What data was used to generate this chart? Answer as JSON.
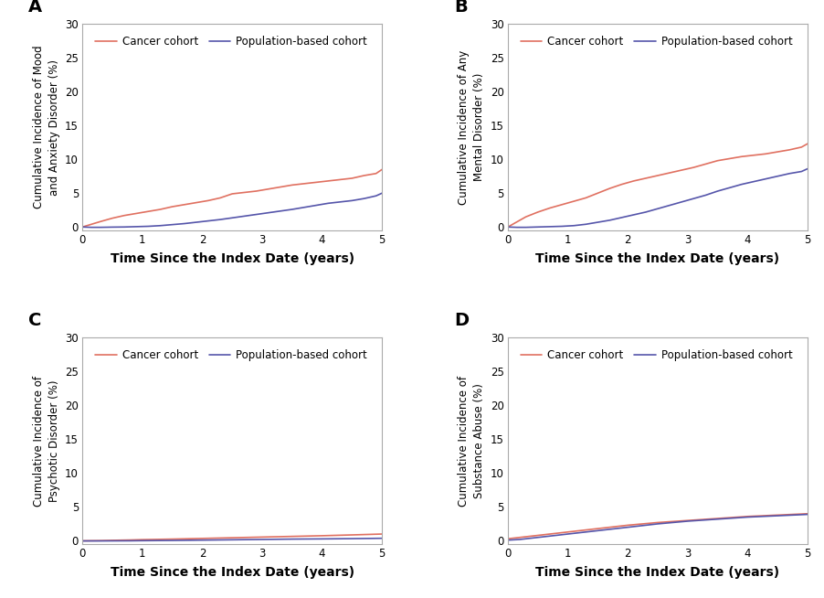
{
  "panels": [
    {
      "label": "A",
      "ylabel": "Cumulative Incidence of Mood\nand Anxiety Disorder (%)",
      "cancer_x": [
        0,
        0.15,
        0.3,
        0.5,
        0.7,
        0.9,
        1.1,
        1.3,
        1.5,
        1.7,
        1.9,
        2.1,
        2.3,
        2.5,
        2.7,
        2.9,
        3.1,
        3.3,
        3.5,
        3.7,
        3.9,
        4.1,
        4.3,
        4.5,
        4.7,
        4.9,
        5.0
      ],
      "cancer_y": [
        0,
        0.4,
        0.8,
        1.3,
        1.7,
        2.0,
        2.3,
        2.6,
        3.0,
        3.3,
        3.6,
        3.9,
        4.3,
        4.9,
        5.1,
        5.3,
        5.6,
        5.9,
        6.2,
        6.4,
        6.6,
        6.8,
        7.0,
        7.2,
        7.6,
        7.9,
        8.5
      ],
      "pop_x": [
        0,
        0.15,
        0.3,
        0.5,
        0.7,
        0.9,
        1.1,
        1.3,
        1.5,
        1.7,
        1.9,
        2.1,
        2.3,
        2.5,
        2.7,
        2.9,
        3.1,
        3.3,
        3.5,
        3.7,
        3.9,
        4.1,
        4.3,
        4.5,
        4.7,
        4.9,
        5.0
      ],
      "pop_y": [
        0,
        -0.05,
        -0.05,
        -0.02,
        0.0,
        0.05,
        0.1,
        0.2,
        0.35,
        0.5,
        0.7,
        0.9,
        1.1,
        1.35,
        1.6,
        1.85,
        2.1,
        2.35,
        2.6,
        2.9,
        3.2,
        3.5,
        3.7,
        3.9,
        4.2,
        4.6,
        5.0
      ]
    },
    {
      "label": "B",
      "ylabel": "Cumulative Incidence of Any\nMental Disorder (%)",
      "cancer_x": [
        0,
        0.1,
        0.2,
        0.3,
        0.5,
        0.7,
        0.9,
        1.1,
        1.3,
        1.5,
        1.7,
        1.9,
        2.1,
        2.3,
        2.5,
        2.7,
        2.9,
        3.1,
        3.3,
        3.5,
        3.7,
        3.9,
        4.1,
        4.3,
        4.5,
        4.7,
        4.9,
        5.0
      ],
      "cancer_y": [
        0,
        0.5,
        1.0,
        1.5,
        2.2,
        2.8,
        3.3,
        3.8,
        4.3,
        5.0,
        5.7,
        6.3,
        6.8,
        7.2,
        7.6,
        8.0,
        8.4,
        8.8,
        9.3,
        9.8,
        10.1,
        10.4,
        10.6,
        10.8,
        11.1,
        11.4,
        11.8,
        12.3
      ],
      "pop_x": [
        0,
        0.15,
        0.3,
        0.5,
        0.7,
        0.9,
        1.1,
        1.3,
        1.5,
        1.7,
        1.9,
        2.1,
        2.3,
        2.5,
        2.7,
        2.9,
        3.1,
        3.3,
        3.5,
        3.7,
        3.9,
        4.1,
        4.3,
        4.5,
        4.7,
        4.9,
        5.0
      ],
      "pop_y": [
        0,
        -0.05,
        -0.05,
        0.0,
        0.05,
        0.1,
        0.2,
        0.4,
        0.7,
        1.0,
        1.4,
        1.8,
        2.2,
        2.7,
        3.2,
        3.7,
        4.2,
        4.7,
        5.3,
        5.8,
        6.3,
        6.7,
        7.1,
        7.5,
        7.9,
        8.2,
        8.6
      ]
    },
    {
      "label": "C",
      "ylabel": "Cumulative Incidence of\nPsychotic Disorder (%)",
      "cancer_x": [
        0,
        0.3,
        0.5,
        0.8,
        1.0,
        1.5,
        2.0,
        2.5,
        3.0,
        3.5,
        4.0,
        4.5,
        5.0
      ],
      "cancer_y": [
        0,
        0.03,
        0.07,
        0.12,
        0.17,
        0.25,
        0.35,
        0.45,
        0.55,
        0.65,
        0.75,
        0.87,
        1.0
      ],
      "pop_x": [
        0,
        0.3,
        0.5,
        0.8,
        1.0,
        1.5,
        2.0,
        2.5,
        3.0,
        3.5,
        4.0,
        4.5,
        5.0
      ],
      "pop_y": [
        -0.02,
        -0.02,
        -0.01,
        0.0,
        0.02,
        0.05,
        0.1,
        0.15,
        0.2,
        0.25,
        0.28,
        0.32,
        0.37
      ]
    },
    {
      "label": "D",
      "ylabel": "Cumulative Incidence of\nSubstance Abuse (%)",
      "cancer_x": [
        0,
        0.2,
        0.4,
        0.6,
        0.8,
        1.0,
        1.3,
        1.5,
        1.8,
        2.0,
        2.5,
        3.0,
        3.5,
        4.0,
        4.5,
        5.0
      ],
      "cancer_y": [
        0.3,
        0.5,
        0.7,
        0.9,
        1.1,
        1.3,
        1.6,
        1.8,
        2.1,
        2.3,
        2.7,
        3.0,
        3.3,
        3.6,
        3.8,
        4.0
      ],
      "pop_x": [
        0,
        0.2,
        0.4,
        0.6,
        0.8,
        1.0,
        1.3,
        1.5,
        1.8,
        2.0,
        2.5,
        3.0,
        3.5,
        4.0,
        4.5,
        5.0
      ],
      "pop_y": [
        0.1,
        0.2,
        0.4,
        0.6,
        0.8,
        1.0,
        1.3,
        1.5,
        1.8,
        2.0,
        2.5,
        2.9,
        3.2,
        3.5,
        3.7,
        3.9
      ]
    }
  ],
  "cancer_color": "#E07060",
  "pop_color": "#5555AA",
  "xlabel": "Time Since the Index Date (years)",
  "legend_cancer": "Cancer cohort",
  "legend_pop": "Population-based cohort",
  "ylim": [
    -0.5,
    30
  ],
  "yticks": [
    0,
    5,
    10,
    15,
    20,
    25,
    30
  ],
  "xlim": [
    0,
    5
  ],
  "xticks": [
    0,
    1,
    2,
    3,
    4,
    5
  ],
  "line_width": 1.2,
  "label_fontsize": 8.5,
  "tick_fontsize": 8.5,
  "xlabel_fontsize": 10,
  "legend_fontsize": 8.5,
  "panel_label_fontsize": 14,
  "spine_color": "#aaaaaa",
  "bg_color": "#ffffff"
}
